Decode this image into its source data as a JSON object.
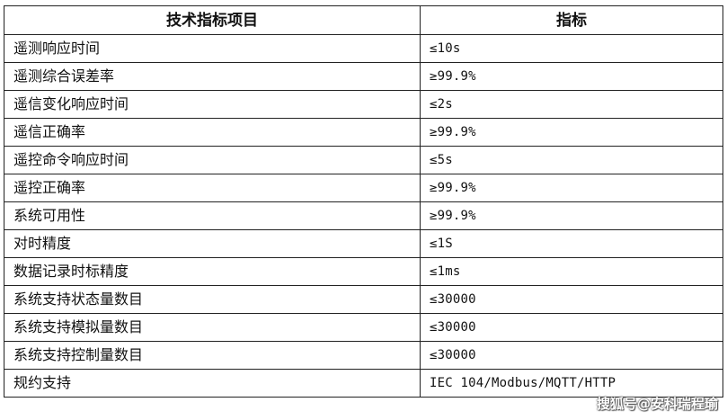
{
  "table": {
    "headers": [
      "技术指标项目",
      "指标"
    ],
    "rows": [
      [
        "遥测响应时间",
        "≤10s"
      ],
      [
        "遥测综合误差率",
        "≥99.9%"
      ],
      [
        "遥信变化响应时间",
        "≤2s"
      ],
      [
        "遥信正确率",
        "≥99.9%"
      ],
      [
        "遥控命令响应时间",
        "≤5s"
      ],
      [
        "遥控正确率",
        "≥99.9%"
      ],
      [
        "系统可用性",
        "≥99.9%"
      ],
      [
        "对时精度",
        "≤1S"
      ],
      [
        "数据记录时标精度",
        "≤1ms"
      ],
      [
        "系统支持状态量数目",
        "≤30000"
      ],
      [
        "系统支持模拟量数目",
        "≤30000"
      ],
      [
        "系统支持控制量数目",
        "≤30000"
      ],
      [
        "规约支持",
        "IEC 104/Modbus/MQTT/HTTP"
      ]
    ]
  },
  "watermark": "搜狐号@安科瑞程瑜"
}
